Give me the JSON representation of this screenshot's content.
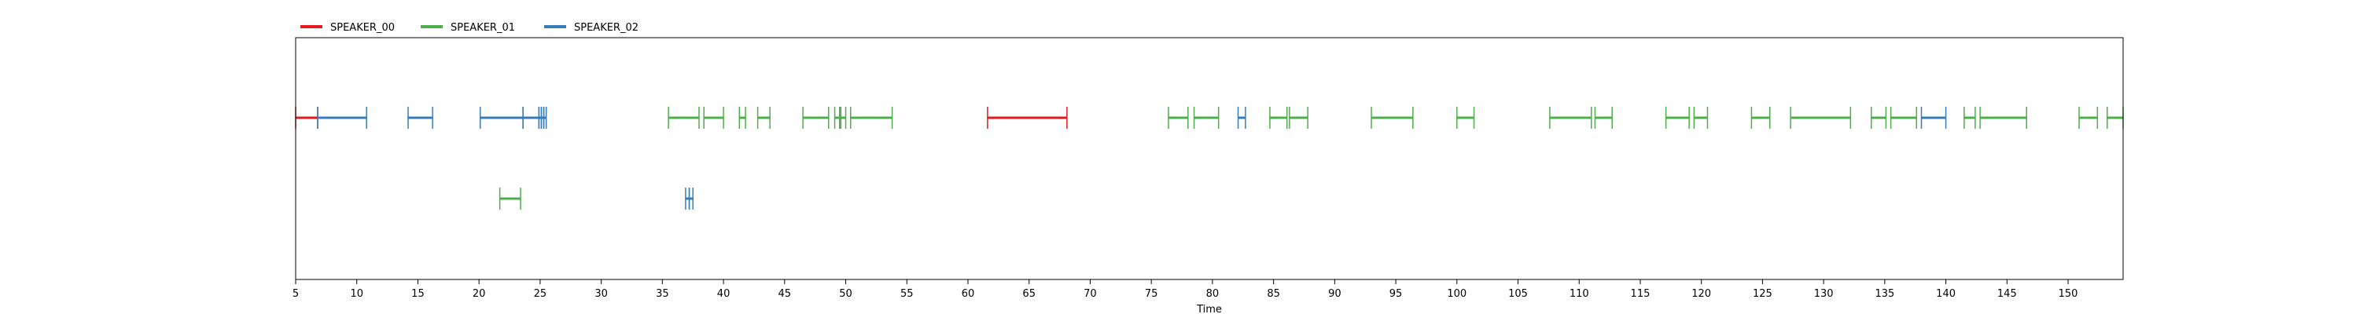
{
  "chart_data": {
    "type": "timeline",
    "xlabel": "Time",
    "xlim": [
      5,
      154.5
    ],
    "xticks": [
      5,
      10,
      15,
      20,
      25,
      30,
      35,
      40,
      45,
      50,
      55,
      60,
      65,
      70,
      75,
      80,
      85,
      90,
      95,
      100,
      105,
      110,
      115,
      120,
      125,
      130,
      135,
      140,
      145,
      150
    ],
    "legend": {
      "placement": "top-left",
      "entries": [
        {
          "name": "SPEAKER_00",
          "color": "#e41a1c"
        },
        {
          "name": "SPEAKER_01",
          "color": "#4daf4a"
        },
        {
          "name": "SPEAKER_02",
          "color": "#377eb8"
        }
      ]
    },
    "segments": [
      {
        "speaker": "SPEAKER_00",
        "row": 0,
        "start": 5.0,
        "end": 6.8
      },
      {
        "speaker": "SPEAKER_02",
        "row": 0,
        "start": 6.8,
        "end": 10.8
      },
      {
        "speaker": "SPEAKER_02",
        "row": 0,
        "start": 14.2,
        "end": 16.2
      },
      {
        "speaker": "SPEAKER_02",
        "row": 0,
        "start": 20.1,
        "end": 23.6
      },
      {
        "speaker": "SPEAKER_02",
        "row": 0,
        "start": 23.6,
        "end": 24.9
      },
      {
        "speaker": "SPEAKER_02",
        "row": 0,
        "start": 24.9,
        "end": 25.1
      },
      {
        "speaker": "SPEAKER_02",
        "row": 0,
        "start": 25.1,
        "end": 25.3
      },
      {
        "speaker": "SPEAKER_02",
        "row": 0,
        "start": 25.3,
        "end": 25.5
      },
      {
        "speaker": "SPEAKER_01",
        "row": 1,
        "start": 21.7,
        "end": 23.4
      },
      {
        "speaker": "SPEAKER_01",
        "row": 0,
        "start": 35.5,
        "end": 38.0
      },
      {
        "speaker": "SPEAKER_01",
        "row": 0,
        "start": 38.4,
        "end": 40.0
      },
      {
        "speaker": "SPEAKER_02",
        "row": 1,
        "start": 36.9,
        "end": 37.2
      },
      {
        "speaker": "SPEAKER_02",
        "row": 1,
        "start": 37.2,
        "end": 37.5
      },
      {
        "speaker": "SPEAKER_01",
        "row": 0,
        "start": 41.3,
        "end": 41.8
      },
      {
        "speaker": "SPEAKER_01",
        "row": 0,
        "start": 42.8,
        "end": 43.8
      },
      {
        "speaker": "SPEAKER_01",
        "row": 0,
        "start": 46.5,
        "end": 48.6
      },
      {
        "speaker": "SPEAKER_01",
        "row": 0,
        "start": 49.1,
        "end": 49.5
      },
      {
        "speaker": "SPEAKER_01",
        "row": 0,
        "start": 49.6,
        "end": 50.0
      },
      {
        "speaker": "SPEAKER_01",
        "row": 0,
        "start": 50.4,
        "end": 53.8
      },
      {
        "speaker": "SPEAKER_00",
        "row": 0,
        "start": 61.6,
        "end": 68.1
      },
      {
        "speaker": "SPEAKER_01",
        "row": 0,
        "start": 76.4,
        "end": 78.0
      },
      {
        "speaker": "SPEAKER_01",
        "row": 0,
        "start": 78.5,
        "end": 80.5
      },
      {
        "speaker": "SPEAKER_02",
        "row": 0,
        "start": 82.1,
        "end": 82.7
      },
      {
        "speaker": "SPEAKER_01",
        "row": 0,
        "start": 84.7,
        "end": 86.1
      },
      {
        "speaker": "SPEAKER_01",
        "row": 0,
        "start": 86.3,
        "end": 87.8
      },
      {
        "speaker": "SPEAKER_01",
        "row": 0,
        "start": 93.0,
        "end": 96.4
      },
      {
        "speaker": "SPEAKER_01",
        "row": 0,
        "start": 100.0,
        "end": 101.4
      },
      {
        "speaker": "SPEAKER_01",
        "row": 0,
        "start": 107.6,
        "end": 111.0
      },
      {
        "speaker": "SPEAKER_01",
        "row": 0,
        "start": 111.3,
        "end": 112.7
      },
      {
        "speaker": "SPEAKER_01",
        "row": 0,
        "start": 117.1,
        "end": 119.0
      },
      {
        "speaker": "SPEAKER_01",
        "row": 0,
        "start": 119.4,
        "end": 120.5
      },
      {
        "speaker": "SPEAKER_01",
        "row": 0,
        "start": 124.1,
        "end": 125.6
      },
      {
        "speaker": "SPEAKER_01",
        "row": 0,
        "start": 127.3,
        "end": 132.2
      },
      {
        "speaker": "SPEAKER_01",
        "row": 0,
        "start": 133.9,
        "end": 135.1
      },
      {
        "speaker": "SPEAKER_01",
        "row": 0,
        "start": 135.5,
        "end": 137.6
      },
      {
        "speaker": "SPEAKER_02",
        "row": 0,
        "start": 138.0,
        "end": 140.0
      },
      {
        "speaker": "SPEAKER_01",
        "row": 0,
        "start": 141.5,
        "end": 142.4
      },
      {
        "speaker": "SPEAKER_01",
        "row": 0,
        "start": 142.8,
        "end": 146.6
      },
      {
        "speaker": "SPEAKER_01",
        "row": 0,
        "start": 150.9,
        "end": 152.4
      },
      {
        "speaker": "SPEAKER_01",
        "row": 0,
        "start": 153.2,
        "end": 154.5
      }
    ]
  }
}
